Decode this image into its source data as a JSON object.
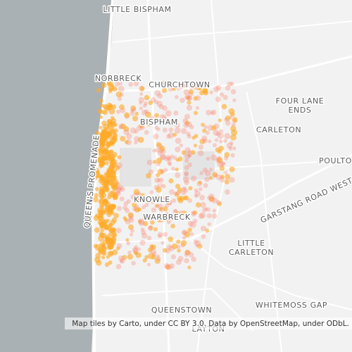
{
  "map": {
    "labels": [
      "LITTLE BISPHAM",
      "NORBRECK",
      "CHURCHTOWN",
      {
        "lines": [
          "FOUR LANE",
          "ENDS"
        ]
      },
      "BISPHAM",
      "CARLETON",
      "POULTO",
      "GARSTANG ROAD WEST",
      "QUEEN'S PROMENADE",
      "KNOWLE",
      "WARBRECK",
      {
        "lines": [
          "LITTLE",
          "CARLETON"
        ]
      },
      "QUEENSTOWN",
      "WHITEMOSS GAP",
      "LAYTON"
    ],
    "attribution": "Map tiles by Carto, under CC BY 3.0. Data by OpenStreetMap, under ODbL."
  }
}
